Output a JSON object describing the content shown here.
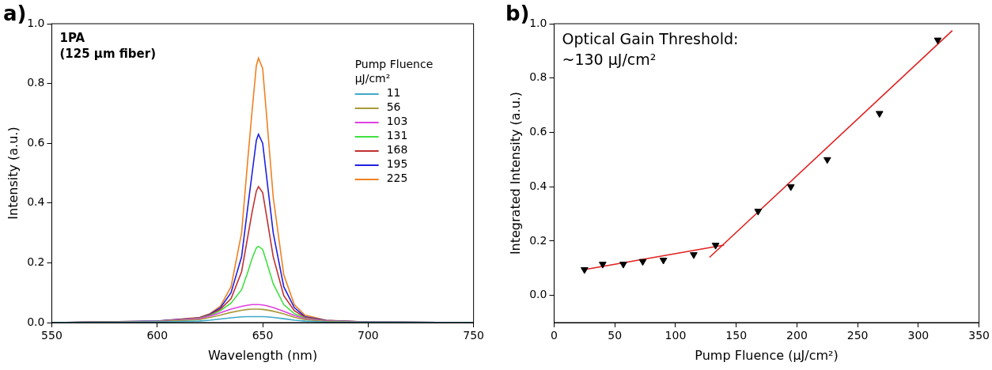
{
  "chart_data": [
    {
      "type": "line",
      "panel_label": "a)",
      "annotations": [
        "1PA",
        "(125 μm fiber)"
      ],
      "x_label": "Wavelength (nm)",
      "y_label": "Intensity (a.u.)",
      "legend": "upper right",
      "legend_title": [
        "Pump Fluence",
        "μJ/cm²"
      ],
      "grid": false,
      "xlim": [
        550,
        750
      ],
      "xticks": [
        550,
        600,
        650,
        700,
        750
      ],
      "ylim": [
        0,
        1
      ],
      "yticks": [
        {
          "value": 0,
          "label": "0.0"
        },
        0.2,
        0.4,
        0.6,
        0.8,
        {
          "value": 1,
          "label": "1.0"
        }
      ],
      "x": [
        550,
        600,
        620,
        625,
        630,
        635,
        640,
        643,
        645,
        647,
        648,
        650,
        652,
        655,
        660,
        665,
        670,
        680,
        700,
        750
      ],
      "series": [
        {
          "name": "11",
          "color": "#3fa9c9",
          "values": [
            0,
            0.002,
            0.005,
            0.008,
            0.012,
            0.016,
            0.019,
            0.02,
            0.02,
            0.02,
            0.02,
            0.02,
            0.019,
            0.017,
            0.013,
            0.008,
            0.005,
            0.002,
            0.001,
            0
          ]
        },
        {
          "name": "56",
          "color": "#a89a3a",
          "values": [
            0,
            0.003,
            0.01,
            0.017,
            0.025,
            0.034,
            0.041,
            0.044,
            0.045,
            0.045,
            0.045,
            0.044,
            0.042,
            0.038,
            0.029,
            0.018,
            0.01,
            0.004,
            0.001,
            0
          ]
        },
        {
          "name": "103",
          "color": "#e040e0",
          "values": [
            0,
            0.004,
            0.013,
            0.022,
            0.033,
            0.045,
            0.054,
            0.058,
            0.06,
            0.06,
            0.06,
            0.059,
            0.056,
            0.05,
            0.038,
            0.024,
            0.013,
            0.005,
            0.002,
            0
          ]
        },
        {
          "name": "131",
          "color": "#40e040",
          "values": [
            0,
            0.004,
            0.014,
            0.024,
            0.04,
            0.065,
            0.11,
            0.17,
            0.215,
            0.25,
            0.255,
            0.245,
            0.2,
            0.13,
            0.06,
            0.03,
            0.015,
            0.005,
            0.002,
            0
          ]
        },
        {
          "name": "168",
          "color": "#c03030",
          "values": [
            0,
            0.004,
            0.015,
            0.026,
            0.045,
            0.08,
            0.17,
            0.29,
            0.37,
            0.44,
            0.455,
            0.435,
            0.35,
            0.22,
            0.09,
            0.04,
            0.018,
            0.006,
            0.002,
            0
          ]
        },
        {
          "name": "195",
          "color": "#2020e0",
          "values": [
            0,
            0.005,
            0.016,
            0.028,
            0.05,
            0.1,
            0.22,
            0.39,
            0.5,
            0.61,
            0.63,
            0.6,
            0.48,
            0.3,
            0.12,
            0.05,
            0.02,
            0.007,
            0.002,
            0
          ]
        },
        {
          "name": "225",
          "color": "#f08020",
          "values": [
            0,
            0.005,
            0.017,
            0.03,
            0.055,
            0.12,
            0.3,
            0.55,
            0.71,
            0.86,
            0.885,
            0.85,
            0.68,
            0.42,
            0.16,
            0.06,
            0.025,
            0.008,
            0.002,
            0
          ]
        }
      ]
    },
    {
      "type": "scatter",
      "panel_label": "b)",
      "annotations": [
        "Optical Gain Threshold:",
        "~130 μJ/cm²"
      ],
      "x_label": "Pump Fluence (μJ/cm²)",
      "y_label": "Integrated Intensity (a.u.)",
      "grid": false,
      "xlim": [
        0,
        350
      ],
      "xticks": [
        0,
        50,
        100,
        150,
        200,
        250,
        300,
        350
      ],
      "ylim": [
        -0.1,
        1
      ],
      "yticks": [
        {
          "value": 0,
          "label": "0.0"
        },
        0.2,
        0.4,
        0.6,
        0.8,
        {
          "value": 1,
          "label": "1.0"
        }
      ],
      "series": [
        {
          "type": "scatter",
          "marker": "triangle_down",
          "color": "#000000",
          "x": [
            25,
            40,
            57,
            73,
            90,
            115,
            133,
            168,
            195,
            225,
            268,
            316
          ],
          "values": [
            0.095,
            0.115,
            0.115,
            0.125,
            0.13,
            0.15,
            0.185,
            0.31,
            0.4,
            0.5,
            0.67,
            0.94
          ]
        },
        {
          "type": "line",
          "line_style": "solid",
          "color": "#e02020",
          "x": [
            25,
            140
          ],
          "values": [
            0.095,
            0.185
          ]
        },
        {
          "type": "line",
          "line_style": "solid",
          "color": "#e02020",
          "x": [
            128,
            328
          ],
          "values": [
            0.14,
            0.975
          ]
        }
      ]
    }
  ]
}
